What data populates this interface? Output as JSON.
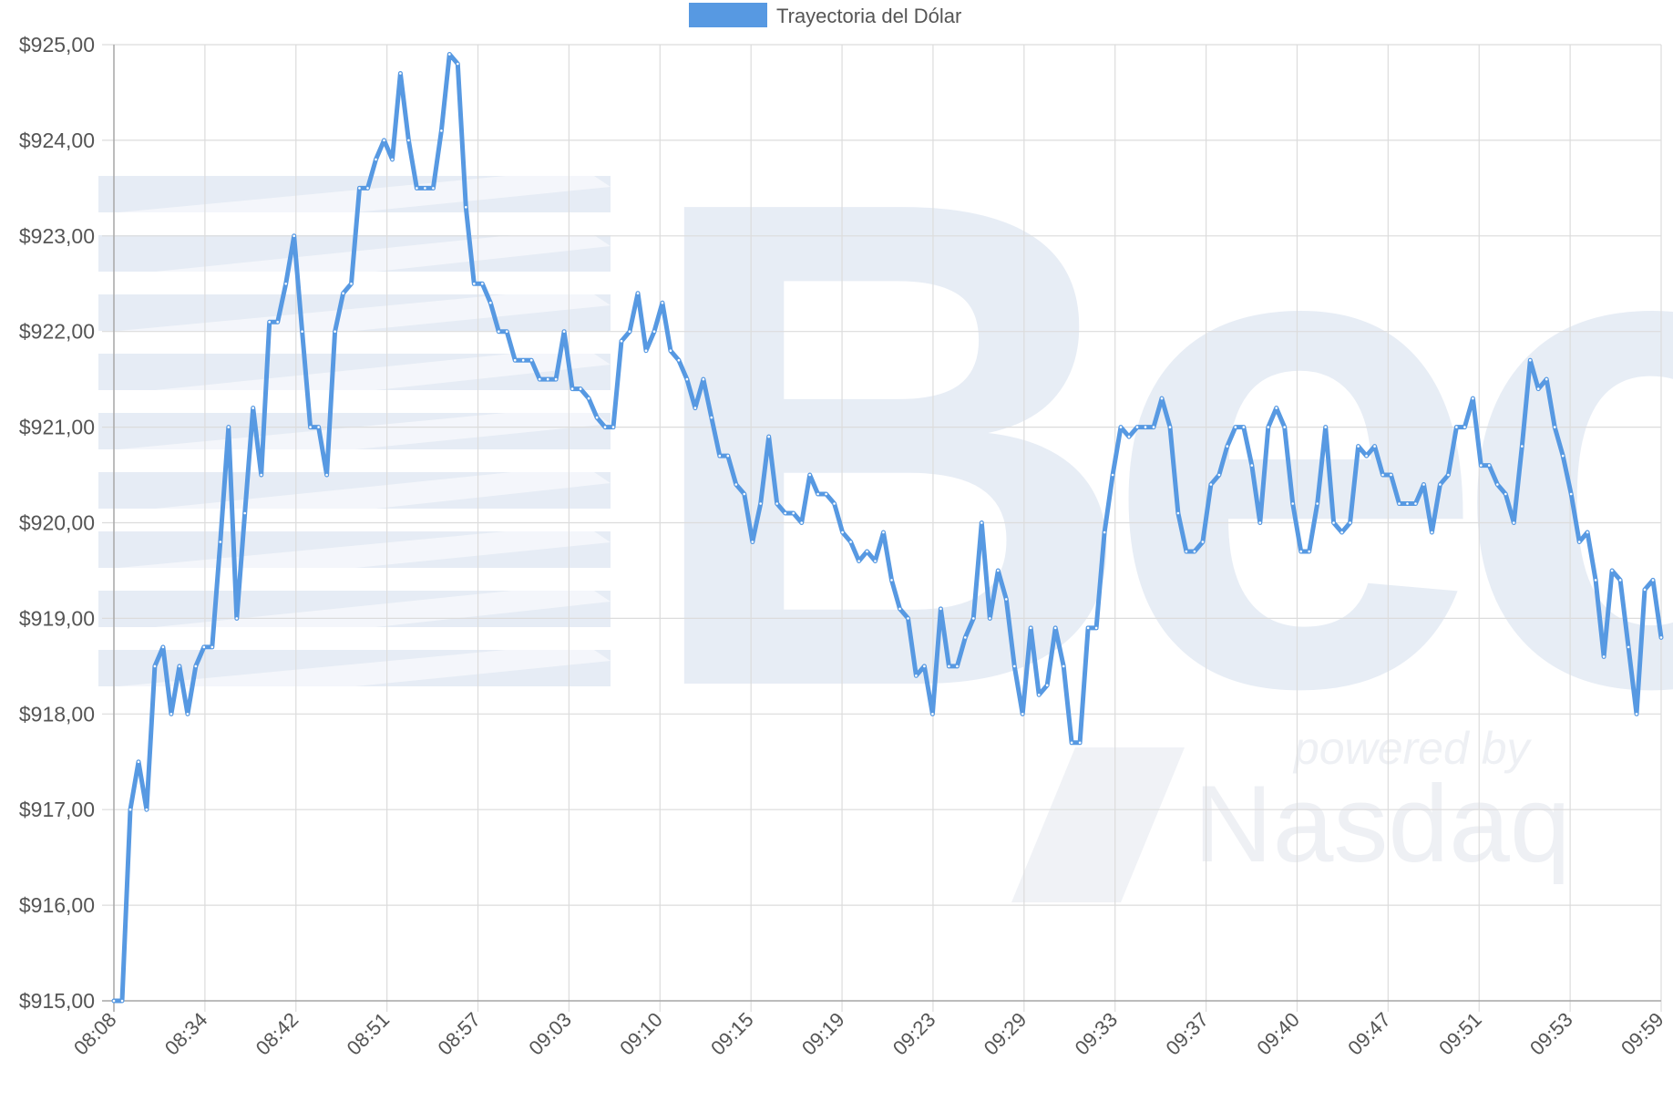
{
  "legend": {
    "label": "Trayectoria del Dólar",
    "color": "#5799E2"
  },
  "watermark": {
    "brand_text": "Bec",
    "powered_by": "powered by",
    "nasdaq": "Nasdaq",
    "color": "#E3EAF4"
  },
  "chart_data": {
    "type": "line",
    "title": "",
    "xlabel": "",
    "ylabel": "",
    "ylim": [
      915,
      925
    ],
    "y_ticks": [
      "$925,00",
      "$924,00",
      "$923,00",
      "$922,00",
      "$921,00",
      "$920,00",
      "$919,00",
      "$918,00",
      "$917,00",
      "$916,00",
      "$915,00"
    ],
    "x_tick_labels": [
      "08:08",
      "08:34",
      "08:42",
      "08:51",
      "08:57",
      "09:03",
      "09:10",
      "09:15",
      "09:19",
      "09:23",
      "09:29",
      "09:33",
      "09:37",
      "09:40",
      "09:47",
      "09:51",
      "09:53",
      "09:59"
    ],
    "grid": true,
    "legend_position": "top",
    "series": [
      {
        "name": "Trayectoria del Dólar",
        "color": "#5799E2",
        "values": [
          915.0,
          915.0,
          917.0,
          917.5,
          917.0,
          918.5,
          918.7,
          918.0,
          918.5,
          918.0,
          918.5,
          918.7,
          918.7,
          919.8,
          921.0,
          919.0,
          920.1,
          921.2,
          920.5,
          922.1,
          922.1,
          922.5,
          923.0,
          922.0,
          921.0,
          921.0,
          920.5,
          922.0,
          922.4,
          922.5,
          923.5,
          923.5,
          923.8,
          924.0,
          923.8,
          924.7,
          924.0,
          923.5,
          923.5,
          923.5,
          924.1,
          924.9,
          924.8,
          923.3,
          922.5,
          922.5,
          922.3,
          922.0,
          922.0,
          921.7,
          921.7,
          921.7,
          921.5,
          921.5,
          921.5,
          922.0,
          921.4,
          921.4,
          921.3,
          921.1,
          921.0,
          921.0,
          921.9,
          922.0,
          922.4,
          921.8,
          922.0,
          922.3,
          921.8,
          921.7,
          921.5,
          921.2,
          921.5,
          921.1,
          920.7,
          920.7,
          920.4,
          920.3,
          919.8,
          920.2,
          920.9,
          920.2,
          920.1,
          920.1,
          920.0,
          920.5,
          920.3,
          920.3,
          920.2,
          919.9,
          919.8,
          919.6,
          919.7,
          919.6,
          919.9,
          919.4,
          919.1,
          919.0,
          918.4,
          918.5,
          918.0,
          919.1,
          918.5,
          918.5,
          918.8,
          919.0,
          920.0,
          919.0,
          919.5,
          919.2,
          918.5,
          918.0,
          918.9,
          918.2,
          918.3,
          918.9,
          918.5,
          917.7,
          917.7,
          918.9,
          918.9,
          919.9,
          920.5,
          921.0,
          920.9,
          921.0,
          921.0,
          921.0,
          921.3,
          921.0,
          920.1,
          919.7,
          919.7,
          919.8,
          920.4,
          920.5,
          920.8,
          921.0,
          921.0,
          920.6,
          920.0,
          921.0,
          921.2,
          921.0,
          920.2,
          919.7,
          919.7,
          920.2,
          921.0,
          920.0,
          919.9,
          920.0,
          920.8,
          920.7,
          920.8,
          920.5,
          920.5,
          920.2,
          920.2,
          920.2,
          920.4,
          919.9,
          920.4,
          920.5,
          921.0,
          921.0,
          921.3,
          920.6,
          920.6,
          920.4,
          920.3,
          920.0,
          920.8,
          921.7,
          921.4,
          921.5,
          921.0,
          920.7,
          920.3,
          919.8,
          919.9,
          919.4,
          918.6,
          919.5,
          919.4,
          918.7,
          918.0,
          919.3,
          919.4,
          918.8
        ]
      }
    ]
  }
}
